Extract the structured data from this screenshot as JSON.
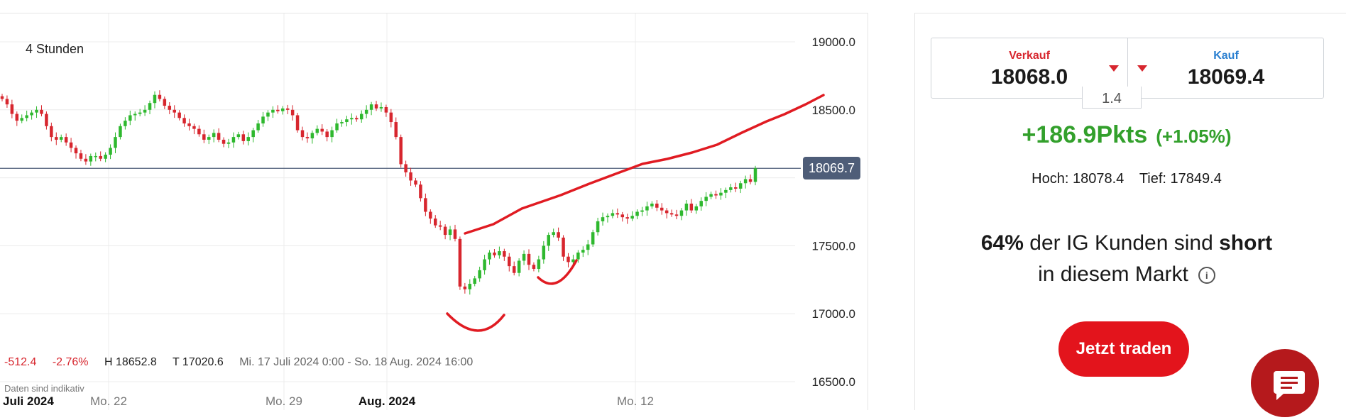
{
  "chart": {
    "timeframe": "4 Stunden",
    "current_price": "18069.7",
    "y_labels": [
      "19000.0",
      "18500.0",
      "17500.0",
      "17000.0",
      "16500.0"
    ],
    "x_labels": [
      "Juli 2024",
      "Mo. 22",
      "Mo. 29",
      "Aug. 2024",
      "Mo. 12"
    ],
    "stats": {
      "change_abs": "-512.4",
      "change_pct": "-2.76%",
      "high": "H 18652.8",
      "low": "T 17020.6",
      "range": "Mi. 17 Juli 2024 0:00 - So. 18 Aug. 2024 16:00"
    },
    "disclaimer": "Daten sind indikativ"
  },
  "chart_data": {
    "type": "candlestick",
    "y_unit": "price",
    "ylim": [
      16450,
      19100
    ],
    "y_ticks": [
      19000,
      18500,
      18000,
      17500,
      17000,
      16500
    ],
    "last_price": 18069.7,
    "colors": {
      "up": "#2eb82e",
      "down": "#d7262e",
      "annotation": "#e01b22",
      "price_line": "#4e5d78"
    },
    "closes": [
      18580,
      18540,
      18470,
      18420,
      18440,
      18460,
      18480,
      18500,
      18470,
      18380,
      18300,
      18280,
      18300,
      18260,
      18220,
      18180,
      18140,
      18120,
      18160,
      18160,
      18140,
      18170,
      18220,
      18300,
      18380,
      18420,
      18460,
      18470,
      18480,
      18500,
      18550,
      18610,
      18580,
      18530,
      18500,
      18480,
      18440,
      18400,
      18380,
      18360,
      18320,
      18280,
      18300,
      18330,
      18280,
      18250,
      18260,
      18300,
      18320,
      18270,
      18300,
      18350,
      18400,
      18450,
      18480,
      18500,
      18490,
      18510,
      18500,
      18460,
      18350,
      18300,
      18290,
      18330,
      18360,
      18340,
      18300,
      18350,
      18400,
      18410,
      18430,
      18440,
      18430,
      18470,
      18500,
      18540,
      18510,
      18520,
      18480,
      18410,
      18300,
      18100,
      18040,
      17980,
      17950,
      17850,
      17750,
      17700,
      17650,
      17640,
      17580,
      17620,
      17550,
      17200,
      17180,
      17220,
      17260,
      17320,
      17400,
      17450,
      17430,
      17460,
      17420,
      17350,
      17300,
      17390,
      17440,
      17360,
      17330,
      17400,
      17500,
      17580,
      17600,
      17560,
      17420,
      17380,
      17400,
      17450,
      17470,
      17510,
      17600,
      17680,
      17710,
      17720,
      17740,
      17730,
      17710,
      17700,
      17720,
      17750,
      17760,
      17790,
      17810,
      17780,
      17760,
      17740,
      17730,
      17720,
      17760,
      17810,
      17760,
      17790,
      17830,
      17860,
      17880,
      17870,
      17890,
      17910,
      17930,
      17920,
      17960,
      17990,
      17970,
      18069.7
    ]
  },
  "trade": {
    "sell_label": "Verkauf",
    "sell_price": "18068.0",
    "buy_label": "Kauf",
    "buy_price": "18069.4",
    "spread": "1.4",
    "change_pts": "+186.9Pkts",
    "change_pct": "(+1.05%)",
    "high": "Hoch: 18078.4",
    "low": "Tief: 17849.4",
    "sentiment_pct": "64%",
    "sentiment_text_1": "der IG Kunden sind",
    "sentiment_word": "short",
    "sentiment_text_2": "in diesem Markt",
    "trade_button": "Jetzt traden"
  }
}
